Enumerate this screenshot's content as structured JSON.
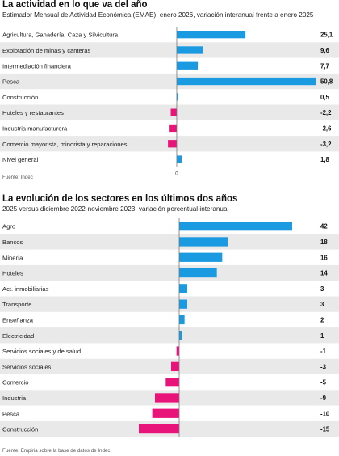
{
  "chart_data": [
    {
      "type": "bar",
      "title": "La actividad en lo que va del año",
      "subtitle": "Estimador Mensual de Actividad Económica (EMAE), enero 2026, variación interanual frente a enero 2025",
      "source": "Fuente: Indec",
      "zero_label": "0",
      "categories": [
        "Agricultura, Ganadería, Caza y Silvicultura",
        "Explotación de minas y canteras",
        "Intermediación financiera",
        "Pesca",
        "Construcción",
        "Hoteles y restaurantes",
        "Industria manufacturera",
        "Comercio mayorista, minorista y reparaciones",
        "Nivel general"
      ],
      "values": [
        25.1,
        9.6,
        7.7,
        50.8,
        0.5,
        -2.2,
        -2.6,
        -3.2,
        1.8
      ],
      "value_labels": [
        "25,1",
        "9,6",
        "7,7",
        "50,8",
        "0,5",
        "-2,2",
        "-2,6",
        "-3,2",
        "1,8"
      ],
      "xlim": [
        -5,
        51
      ],
      "colors": {
        "positive": "#1a9ae0",
        "negative": "#e8147a",
        "row_shade": "#e9e9e9"
      }
    },
    {
      "type": "bar",
      "title": "La evolución de los sectores en los últimos dos años",
      "subtitle": "2025 versus diciembre 2022-noviembre 2023, variación porcentual interanual",
      "source": "Fuente: Empiria sobre la base de datos de Indec",
      "zero_label": "",
      "categories": [
        "Agro",
        "Bancos",
        "Minería",
        "Hoteles",
        "Act. inmobiliarias",
        "Transporte",
        "Enseñanza",
        "Electricidad",
        "Servicios sociales y de salud",
        "Servicios sociales",
        "Comercio",
        "Industria",
        "Pesca",
        "Construcción"
      ],
      "values": [
        42,
        18,
        16,
        14,
        3,
        3,
        2,
        1,
        -1,
        -3,
        -5,
        -9,
        -10,
        -15
      ],
      "value_labels": [
        "42",
        "18",
        "16",
        "14",
        "3",
        "3",
        "2",
        "1",
        "-1",
        "-3",
        "-5",
        "-9",
        "-10",
        "-15"
      ],
      "xlim": [
        -18,
        42
      ],
      "colors": {
        "positive": "#1a9ae0",
        "negative": "#e8147a",
        "row_shade": "#e9e9e9"
      }
    }
  ]
}
